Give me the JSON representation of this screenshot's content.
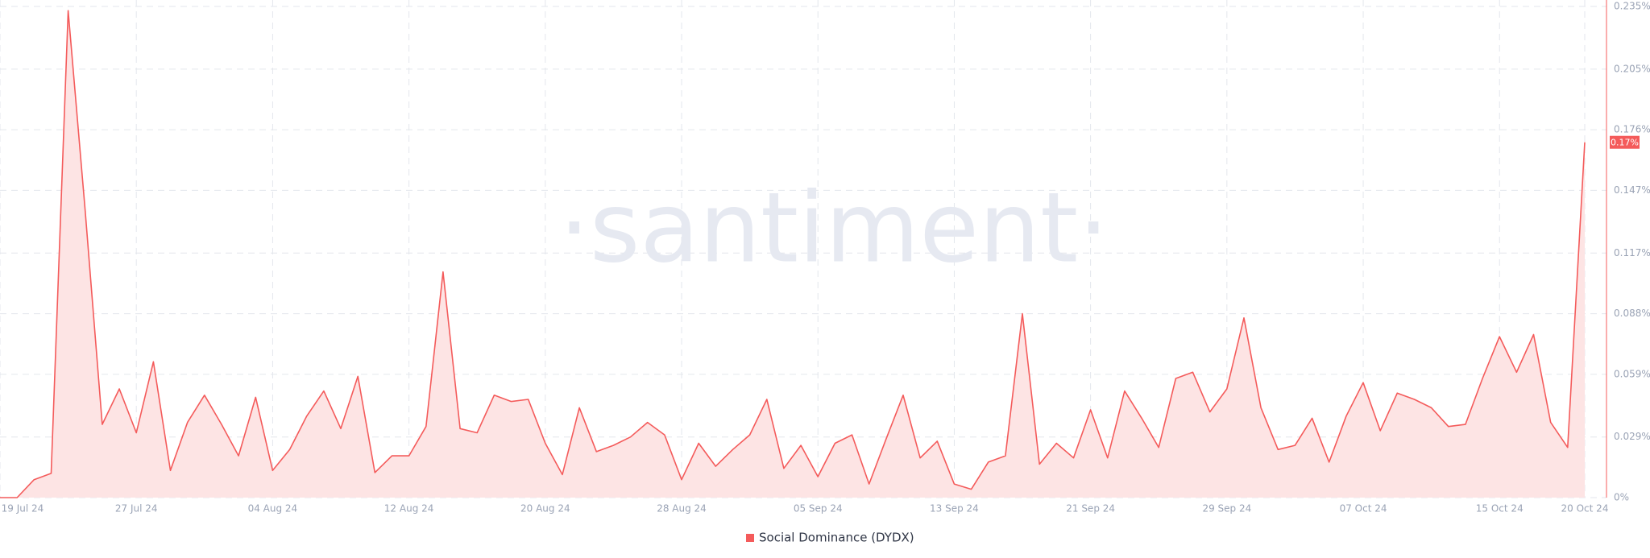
{
  "chart_data": {
    "type": "area",
    "watermark": "·santiment·",
    "x": [
      "2024-07-19",
      "2024-07-20",
      "2024-07-21",
      "2024-07-22",
      "2024-07-23",
      "2024-07-24",
      "2024-07-25",
      "2024-07-26",
      "2024-07-27",
      "2024-07-28",
      "2024-07-29",
      "2024-07-30",
      "2024-07-31",
      "2024-08-01",
      "2024-08-02",
      "2024-08-03",
      "2024-08-04",
      "2024-08-05",
      "2024-08-06",
      "2024-08-07",
      "2024-08-08",
      "2024-08-09",
      "2024-08-10",
      "2024-08-11",
      "2024-08-12",
      "2024-08-13",
      "2024-08-14",
      "2024-08-15",
      "2024-08-16",
      "2024-08-17",
      "2024-08-18",
      "2024-08-19",
      "2024-08-20",
      "2024-08-21",
      "2024-08-22",
      "2024-08-23",
      "2024-08-24",
      "2024-08-25",
      "2024-08-26",
      "2024-08-27",
      "2024-08-28",
      "2024-08-29",
      "2024-08-30",
      "2024-08-31",
      "2024-09-01",
      "2024-09-02",
      "2024-09-03",
      "2024-09-04",
      "2024-09-05",
      "2024-09-06",
      "2024-09-07",
      "2024-09-08",
      "2024-09-09",
      "2024-09-10",
      "2024-09-11",
      "2024-09-12",
      "2024-09-13",
      "2024-09-14",
      "2024-09-15",
      "2024-09-16",
      "2024-09-17",
      "2024-09-18",
      "2024-09-19",
      "2024-09-20",
      "2024-09-21",
      "2024-09-22",
      "2024-09-23",
      "2024-09-24",
      "2024-09-25",
      "2024-09-26",
      "2024-09-27",
      "2024-09-28",
      "2024-09-29",
      "2024-09-30",
      "2024-10-01",
      "2024-10-02",
      "2024-10-03",
      "2024-10-04",
      "2024-10-05",
      "2024-10-06",
      "2024-10-07",
      "2024-10-08",
      "2024-10-09",
      "2024-10-10",
      "2024-10-11",
      "2024-10-12",
      "2024-10-13",
      "2024-10-14",
      "2024-10-15",
      "2024-10-16",
      "2024-10-17",
      "2024-10-18",
      "2024-10-19",
      "2024-10-20"
    ],
    "series": [
      {
        "name": "Social Dominance (DYDX)",
        "color": "#f45b5b",
        "fill": "#fde4e4",
        "values": [
          0,
          0,
          0.0086,
          0.0116,
          0.233,
          0.137,
          0.035,
          0.052,
          0.031,
          0.065,
          0.013,
          0.036,
          0.049,
          0.035,
          0.02,
          0.048,
          0.013,
          0.023,
          0.039,
          0.051,
          0.033,
          0.058,
          0.012,
          0.02,
          0.02,
          0.034,
          0.108,
          0.033,
          0.031,
          0.049,
          0.046,
          0.047,
          0.026,
          0.011,
          0.043,
          0.022,
          0.025,
          0.029,
          0.036,
          0.03,
          0.0086,
          0.026,
          0.015,
          0.023,
          0.03,
          0.047,
          0.014,
          0.025,
          0.01,
          0.026,
          0.03,
          0.0065,
          0.028,
          0.049,
          0.019,
          0.027,
          0.0065,
          0.004,
          0.017,
          0.02,
          0.088,
          0.016,
          0.026,
          0.019,
          0.042,
          0.019,
          0.051,
          0.038,
          0.024,
          0.057,
          0.06,
          0.041,
          0.052,
          0.086,
          0.043,
          0.023,
          0.025,
          0.038,
          0.017,
          0.039,
          0.055,
          0.032,
          0.05,
          0.047,
          0.043,
          0.034,
          0.035,
          0.057,
          0.077,
          0.06,
          0.078,
          0.036,
          0.024,
          0.17
        ]
      }
    ],
    "last_label": {
      "value": 0.17,
      "label": "0.17%"
    },
    "ylim": [
      0,
      0.235
    ],
    "yticks": [
      {
        "value": 0,
        "label": "0%"
      },
      {
        "value": 0.029,
        "label": "0.029%"
      },
      {
        "value": 0.059,
        "label": "0.059%"
      },
      {
        "value": 0.088,
        "label": "0.088%"
      },
      {
        "value": 0.117,
        "label": "0.117%"
      },
      {
        "value": 0.147,
        "label": "0.147%"
      },
      {
        "value": 0.176,
        "label": "0.176%"
      },
      {
        "value": 0.205,
        "label": "0.205%"
      },
      {
        "value": 0.235,
        "label": "0.235%"
      }
    ],
    "xticks": [
      {
        "value": "2024-07-19",
        "label": "19 Jul 24"
      },
      {
        "value": "2024-07-27",
        "label": "27 Jul 24"
      },
      {
        "value": "2024-08-04",
        "label": "04 Aug 24"
      },
      {
        "value": "2024-08-12",
        "label": "12 Aug 24"
      },
      {
        "value": "2024-08-20",
        "label": "20 Aug 24"
      },
      {
        "value": "2024-08-28",
        "label": "28 Aug 24"
      },
      {
        "value": "2024-09-05",
        "label": "05 Sep 24"
      },
      {
        "value": "2024-09-13",
        "label": "13 Sep 24"
      },
      {
        "value": "2024-09-21",
        "label": "21 Sep 24"
      },
      {
        "value": "2024-09-29",
        "label": "29 Sep 24"
      },
      {
        "value": "2024-10-07",
        "label": "07 Oct 24"
      },
      {
        "value": "2024-10-15",
        "label": "15 Oct 24"
      },
      {
        "value": "2024-10-20",
        "label": "20 Oct 24"
      }
    ],
    "grid": true
  }
}
